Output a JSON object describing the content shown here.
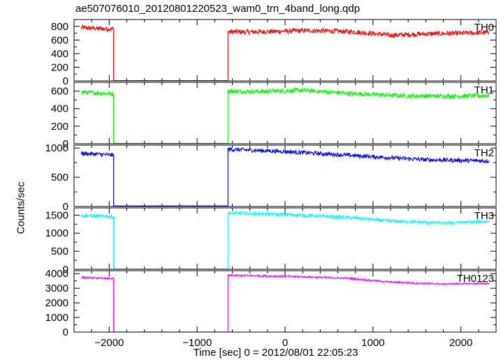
{
  "title": "ae507076010_20120801220523_wam0_trn_4band_long.qdp",
  "xlabel": "Time [sec] 0 = 2012/08/01 22:05:23",
  "ylabel": "Counts/sec",
  "chart_data": {
    "type": "line",
    "title": "ae507076010_20120801220523_wam0_trn_4band_long.qdp",
    "xlabel": "Time [sec] 0 = 2012/08/01 22:05:23",
    "ylabel": "Counts/sec",
    "xlim": [
      -2400,
      2400
    ],
    "xticks": [
      -2000,
      -1000,
      0,
      1000,
      2000
    ],
    "grid": false,
    "gap": [
      -1950,
      -650
    ],
    "panels": [
      {
        "name": "TH0",
        "color": "#ff0000",
        "ylim": [
          0,
          900
        ],
        "yticks": [
          0,
          200,
          400,
          600,
          800
        ],
        "noise": 35,
        "x": [
          -2320,
          -1960,
          -1950,
          -1950,
          -650,
          -650,
          -300,
          300,
          800,
          1200,
          1600,
          2000,
          2320
        ],
        "y": [
          780,
          760,
          760,
          5,
          5,
          720,
          720,
          740,
          720,
          670,
          690,
          700,
          710
        ]
      },
      {
        "name": "TH1",
        "color": "#00ff00",
        "ylim": [
          0,
          700
        ],
        "yticks": [
          0,
          200,
          400,
          600
        ],
        "noise": 25,
        "x": [
          -2320,
          -1960,
          -1950,
          -1950,
          -650,
          -650,
          -300,
          200,
          800,
          1400,
          2000,
          2320
        ],
        "y": [
          590,
          570,
          570,
          5,
          5,
          600,
          595,
          610,
          570,
          545,
          545,
          550
        ],
        "notes": "gap level ~5"
      },
      {
        "name": "TH2",
        "color": "#0000ff",
        "ylim": [
          0,
          1050
        ],
        "yticks": [
          0,
          500,
          1000
        ],
        "noise": 35,
        "x": [
          -2320,
          -1960,
          -1950,
          -1950,
          -650,
          -650,
          0,
          800,
          1600,
          2320
        ],
        "y": [
          910,
          880,
          880,
          10,
          10,
          980,
          940,
          870,
          800,
          780
        ]
      },
      {
        "name": "TH3",
        "color": "#00ffff",
        "ylim": [
          0,
          1700
        ],
        "yticks": [
          0,
          500,
          1000,
          1500
        ],
        "noise": 45,
        "x": [
          -2320,
          -1960,
          -1950,
          -1950,
          -650,
          -650,
          0,
          700,
          1200,
          1800,
          2320
        ],
        "y": [
          1490,
          1460,
          1460,
          10,
          10,
          1560,
          1520,
          1440,
          1340,
          1280,
          1330
        ]
      },
      {
        "name": "TH0123",
        "color": "#ff00ff",
        "ylim": [
          0,
          4200
        ],
        "yticks": [
          0,
          1000,
          2000,
          3000,
          4000
        ],
        "noise": 55,
        "x": [
          -2320,
          -1960,
          -1950,
          -1950,
          -650,
          -650,
          0,
          700,
          1200,
          1800,
          2320
        ],
        "y": [
          3740,
          3660,
          3660,
          5,
          5,
          3880,
          3820,
          3690,
          3420,
          3290,
          3340
        ]
      }
    ]
  }
}
